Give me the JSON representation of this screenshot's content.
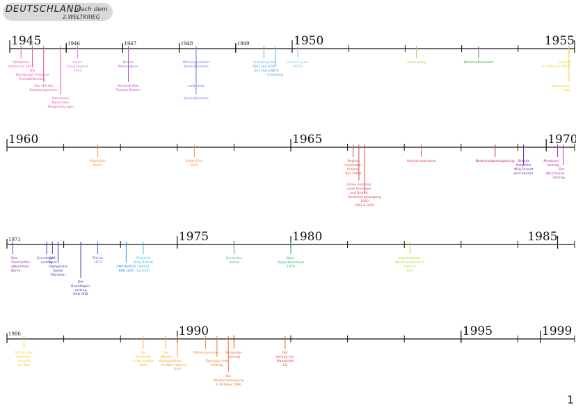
{
  "header": {
    "title": "DEUTSCHLAND",
    "subtitle_top": "nach dem",
    "subtitle_bottom": "2.WELTKRIEG"
  },
  "page_number": "1",
  "rows": [
    {
      "id": "row-1945",
      "years": [
        {
          "label": "1945",
          "pos": 0.0,
          "big": true
        },
        {
          "label": "1946",
          "pos": 0.1,
          "big": false
        },
        {
          "label": "1947",
          "pos": 0.2,
          "big": false
        },
        {
          "label": "1948",
          "pos": 0.3,
          "big": false
        },
        {
          "label": "1949",
          "pos": 0.4,
          "big": false
        },
        {
          "label": "1950",
          "pos": 0.5,
          "big": true
        },
        {
          "label": "1955",
          "pos": 1.0,
          "big": true
        }
      ],
      "ticks": [
        0.0,
        0.1,
        0.2,
        0.3,
        0.4,
        0.5,
        0.6,
        0.7,
        0.8,
        0.9,
        1.0
      ],
      "events": [
        {
          "pos": 0.02,
          "level": 0,
          "color": "#e8509a",
          "lines": [
            "Potsdamer",
            "Konferenz 1945"
          ]
        },
        {
          "pos": 0.04,
          "level": 1,
          "color": "#e8509a",
          "lines": [
            "Die",
            "Nürnberger Prozesse",
            "Entnazifizierung"
          ]
        },
        {
          "pos": 0.06,
          "level": 2,
          "color": "#e8509a",
          "lines": [
            "Vier Mächte",
            "Besatzungszonen"
          ]
        },
        {
          "pos": 0.09,
          "level": 3,
          "color": "#e8509a",
          "lines": [
            "Potsdamer",
            "Abkommen",
            "Neugründungen"
          ]
        },
        {
          "pos": 0.12,
          "level": 0,
          "color": "#d17fd8",
          "lines": [
            "Kalter",
            "Krieg beginnt",
            "1946"
          ]
        },
        {
          "pos": 0.21,
          "level": 0,
          "color": "#b04fd0",
          "lines": [
            "Bizone",
            "Marshallplan"
          ]
        },
        {
          "pos": 0.21,
          "level": 2,
          "color": "#b04fd0",
          "lines": [
            "Marshall-Plan",
            "Truman-Doktrin"
          ]
        },
        {
          "pos": 0.33,
          "level": 0,
          "color": "#6a7fe0",
          "lines": [
            "Währungsreform",
            "Berlin-Blockade"
          ]
        },
        {
          "pos": 0.33,
          "level": 2,
          "color": "#6a7fe0",
          "lines": [
            "Luftbrücke"
          ]
        },
        {
          "pos": 0.33,
          "level": 3,
          "color": "#6a7fe0",
          "lines": [
            "Berlin-Blockade"
          ]
        },
        {
          "pos": 0.45,
          "level": 0,
          "color": "#5aa8e0",
          "lines": [
            "Gründung der",
            "BRD und DDR",
            "Grundgesetz"
          ]
        },
        {
          "pos": 0.47,
          "level": 1,
          "color": "#5aa8e0",
          "lines": [
            "DDR",
            "Gründung"
          ]
        },
        {
          "pos": 0.51,
          "level": 0,
          "color": "#7ec8f0",
          "lines": [
            "Gründung der",
            "NATO"
          ]
        },
        {
          "pos": 0.72,
          "level": 0,
          "color": "#9ad24a",
          "lines": [
            "Korea-Krieg"
          ]
        },
        {
          "pos": 0.83,
          "level": 0,
          "color": "#3ca03c",
          "lines": [
            "Wirtschaftswunder"
          ]
        },
        {
          "pos": 0.99,
          "level": 0,
          "color": "#f2cf40",
          "lines": [
            "Beitritt",
            "der BRD zur NATO"
          ]
        },
        {
          "pos": 0.99,
          "level": 2,
          "color": "#f2cf40",
          "lines": [
            "Warschauer",
            "Pakt"
          ]
        }
      ]
    },
    {
      "id": "row-1960",
      "years": [
        {
          "label": "1960",
          "pos": 0.0,
          "big": true
        },
        {
          "label": "1965",
          "pos": 0.5,
          "big": true
        },
        {
          "label": "1970",
          "pos": 0.95,
          "big": true
        }
      ],
      "ticks": [
        0.0,
        0.1,
        0.2,
        0.3,
        0.4,
        0.5,
        0.6,
        0.7,
        0.8,
        0.9,
        1.0
      ],
      "events": [
        {
          "pos": 0.16,
          "level": 0,
          "color": "#f08c3c",
          "lines": [
            "Mauerbau",
            "Berlin"
          ]
        },
        {
          "pos": 0.33,
          "level": 0,
          "color": "#f08c3c",
          "lines": [
            "Kuba-Krise",
            "1962"
          ]
        },
        {
          "pos": 0.61,
          "level": 0,
          "color": "#e04848",
          "lines": [
            "Beginn",
            "Auschwitz-",
            "Prozess",
            "(bis 1965)"
          ]
        },
        {
          "pos": 0.62,
          "level": 2,
          "color": "#e04848",
          "lines": [
            "Große Koalition",
            "unter Kiesinger",
            "und Brandt"
          ]
        },
        {
          "pos": 0.63,
          "level": 3,
          "color": "#e04848",
          "lines": [
            "Studentenbewegung",
            "1968",
            "BRD & DDR"
          ]
        },
        {
          "pos": 0.73,
          "level": 0,
          "color": "#e04848",
          "lines": [
            "Notstandsgesetze"
          ]
        },
        {
          "pos": 0.86,
          "level": 0,
          "color": "#c0304a",
          "lines": [
            "Notstandsgesetzgebung"
          ]
        },
        {
          "pos": 0.91,
          "level": 0,
          "color": "#6a2aa0",
          "lines": [
            "Brandt",
            "Ostpolitik"
          ]
        },
        {
          "pos": 0.91,
          "level": 1,
          "color": "#6a2aa0",
          "lines": [
            "Willy Brandt",
            "wird Kanzler"
          ]
        },
        {
          "pos": 0.97,
          "level": 0,
          "color": "#b02aa0",
          "lines": [
            "Moskauer",
            "Vertrag"
          ]
        },
        {
          "pos": 0.98,
          "level": 1,
          "color": "#b02aa0",
          "lines": [
            "Der",
            "Warschauer",
            "Vertrag"
          ]
        }
      ]
    },
    {
      "id": "row-1971",
      "years": [
        {
          "label": "1971",
          "pos": 0.0,
          "big": false
        },
        {
          "label": "1975",
          "pos": 0.3,
          "big": true
        },
        {
          "label": "1980",
          "pos": 0.5,
          "big": true
        },
        {
          "label": "1985",
          "pos": 0.97,
          "big": true
        }
      ],
      "ticks": [
        0.0,
        0.1,
        0.2,
        0.3,
        0.4,
        0.5,
        0.6,
        0.7,
        0.8,
        0.9,
        1.0
      ],
      "events": [
        {
          "pos": 0.01,
          "level": 0,
          "color": "#7a2a9a",
          "lines": [
            "Das",
            "Viermächte-",
            "abkommen",
            "Berlin"
          ]
        },
        {
          "pos": 0.07,
          "level": 0,
          "color": "#5a2ab0",
          "lines": [
            "Grundlagen-",
            "vertrag"
          ]
        },
        {
          "pos": 0.08,
          "level": 0,
          "color": "#3a3ab0",
          "lines": [
            "RAF",
            "Terror"
          ]
        },
        {
          "pos": 0.09,
          "level": 1,
          "color": "#2a3aa0",
          "lines": [
            "Olympische",
            "Spiele",
            "München"
          ]
        },
        {
          "pos": 0.13,
          "level": 2,
          "color": "#2a3aa0",
          "lines": [
            "Der",
            "Grundlagen-",
            "vertrag",
            "BRD DDR"
          ]
        },
        {
          "pos": 0.16,
          "level": 0,
          "color": "#3a6ad0",
          "lines": [
            "Ölkrise",
            "1973"
          ]
        },
        {
          "pos": 0.21,
          "level": 1,
          "color": "#3a8ad0",
          "lines": [
            "UNO-Beitritt",
            "BRD DDR"
          ]
        },
        {
          "pos": 0.24,
          "level": 0,
          "color": "#3ab0d0",
          "lines": [
            "Rücktritt",
            "Willy Brandt",
            "Helmut",
            "Schmidt"
          ]
        },
        {
          "pos": 0.4,
          "level": 0,
          "color": "#4ab0a0",
          "lines": [
            "Deutscher",
            "Herbst"
          ]
        },
        {
          "pos": 0.5,
          "level": 0,
          "color": "#2ab84a",
          "lines": [
            "Nato-",
            "Doppelbeschluss",
            "1979"
          ]
        },
        {
          "pos": 0.71,
          "level": 0,
          "color": "#a8d83a",
          "lines": [
            "Konstruktives",
            "Misstrauensvotum",
            "Helmut",
            "Kohl"
          ]
        }
      ]
    },
    {
      "id": "row-1986",
      "years": [
        {
          "label": "1986",
          "pos": 0.0,
          "big": false
        },
        {
          "label": "1990",
          "pos": 0.3,
          "big": true
        },
        {
          "label": "1995",
          "pos": 0.8,
          "big": true
        },
        {
          "label": "1999",
          "pos": 0.94,
          "big": true
        }
      ],
      "ticks": [
        0.0,
        0.1,
        0.2,
        0.3,
        0.4,
        0.5,
        0.6,
        0.7,
        0.8,
        0.9,
        1.0
      ],
      "events": [
        {
          "pos": 0.03,
          "level": 0,
          "color": "#f2cf30",
          "lines": [
            "Tschernobyl",
            "Honecker",
            "besucht",
            "die BRD"
          ]
        },
        {
          "pos": 0.24,
          "level": 0,
          "color": "#f2b830",
          "lines": [
            "Der",
            "Mauerfall",
            "9. November",
            "1989"
          ]
        },
        {
          "pos": 0.28,
          "level": 0,
          "color": "#f2a830",
          "lines": [
            "Die",
            "Wende",
            "Montags-",
            "demos"
          ]
        },
        {
          "pos": 0.3,
          "level": 1,
          "color": "#f29830",
          "lines": [
            "Erste",
            "freie Wahlen",
            "DDR"
          ]
        },
        {
          "pos": 0.35,
          "level": 0,
          "color": "#f08830",
          "lines": [
            "Währungsunion"
          ]
        },
        {
          "pos": 0.37,
          "level": 1,
          "color": "#ec7a30",
          "lines": [
            "Zwei-plus-Vier",
            "Vertrag"
          ]
        },
        {
          "pos": 0.39,
          "level": 2,
          "color": "#e86a30",
          "lines": [
            "Die",
            "Wiedervereinigung",
            "3. Oktober 1990"
          ]
        },
        {
          "pos": 0.4,
          "level": 0,
          "color": "#e05a30",
          "lines": [
            "Einigungs-",
            "vertrag"
          ]
        },
        {
          "pos": 0.49,
          "level": 0,
          "color": "#d84a30",
          "lines": [
            "Der",
            "Vertrag von",
            "Maastricht",
            "EU"
          ]
        }
      ]
    }
  ]
}
